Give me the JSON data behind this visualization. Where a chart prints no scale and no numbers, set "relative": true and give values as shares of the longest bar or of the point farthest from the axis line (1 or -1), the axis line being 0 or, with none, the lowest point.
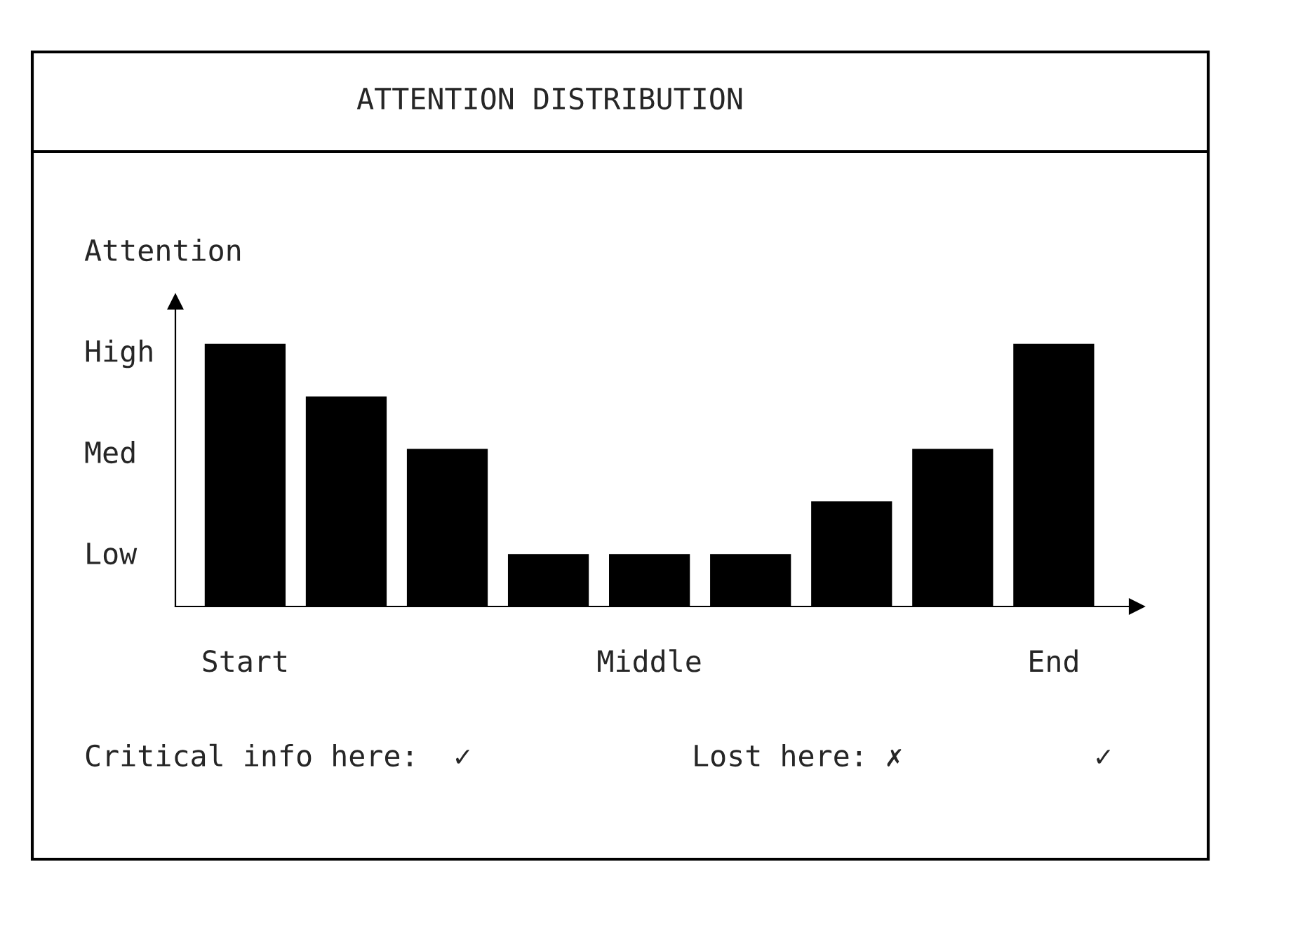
{
  "chart_data": {
    "type": "bar",
    "title": "ATTENTION DISTRIBUTION",
    "ylabel": "Attention",
    "categories": [
      "Start",
      null,
      null,
      null,
      "Middle",
      null,
      null,
      null,
      "End"
    ],
    "values": [
      1,
      0.8,
      0.6,
      0.2,
      0.2,
      0.2,
      0.4,
      0.6,
      1
    ],
    "color": "#000000",
    "relative": true,
    "annotations": [
      "High",
      "Med",
      "Low",
      "Critical info here:  ✓",
      "Lost here: ✗",
      "✓"
    ]
  }
}
